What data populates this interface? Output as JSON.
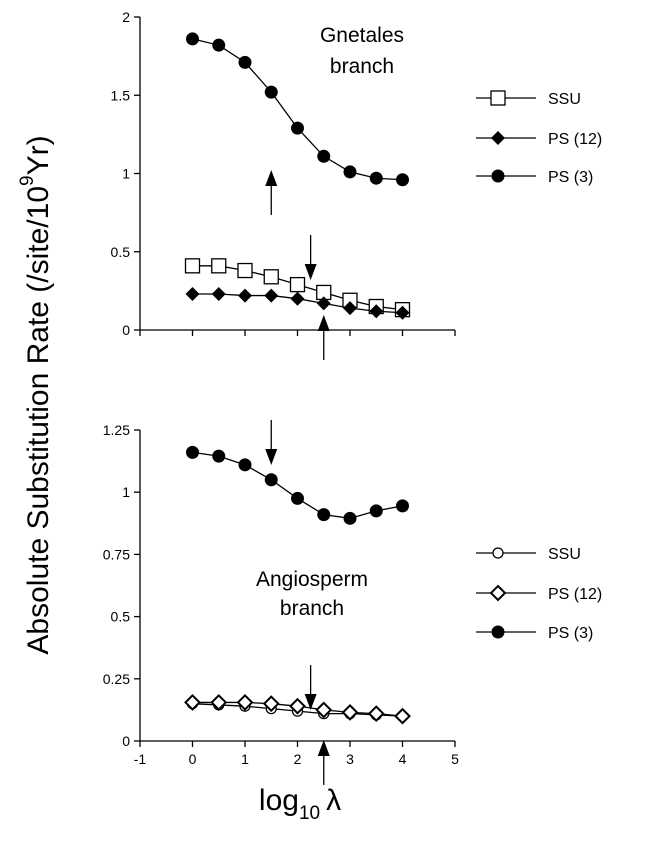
{
  "ylabel": {
    "pre": "Absolute Substitution Rate (/site/10",
    "sup": "9",
    "post": "Yr)"
  },
  "xlabel": {
    "main": "log",
    "sub": "10",
    "symbol": "λ"
  },
  "chart_data": [
    {
      "type": "line",
      "annotation": [
        "Gnetales",
        "branch"
      ],
      "xlim": [
        -1,
        5
      ],
      "ylim": [
        0,
        2
      ],
      "yticks": [
        0,
        0.5,
        1,
        1.5,
        2
      ],
      "ytick_labels": [
        "0",
        "0.5",
        "1",
        "1.5",
        "2"
      ],
      "x": [
        0,
        0.5,
        1,
        1.5,
        2,
        2.5,
        3,
        3.5,
        4
      ],
      "series": [
        {
          "name": "SSU",
          "marker": "open-square",
          "values": [
            0.41,
            0.41,
            0.38,
            0.34,
            0.29,
            0.24,
            0.19,
            0.15,
            0.13
          ]
        },
        {
          "name": "PS (12)",
          "marker": "filled-diamond",
          "values": [
            0.23,
            0.23,
            0.22,
            0.22,
            0.2,
            0.17,
            0.14,
            0.12,
            0.11
          ]
        },
        {
          "name": "PS (3)",
          "marker": "filled-circle",
          "values": [
            1.86,
            1.82,
            1.71,
            1.52,
            1.29,
            1.11,
            1.01,
            0.97,
            0.96
          ]
        }
      ],
      "arrows": [
        {
          "x": 1.5,
          "direction": "up"
        },
        {
          "x": 2.25,
          "direction": "down"
        },
        {
          "x": 2.5,
          "direction": "up"
        }
      ]
    },
    {
      "type": "line",
      "annotation": [
        "Angiosperm",
        "branch"
      ],
      "xlim": [
        -1,
        5
      ],
      "ylim": [
        0,
        1.25
      ],
      "xticks": [
        -1,
        0,
        1,
        2,
        3,
        4,
        5
      ],
      "xtick_labels": [
        "-1",
        "0",
        "1",
        "2",
        "3",
        "4",
        "5"
      ],
      "yticks": [
        0,
        0.25,
        0.5,
        0.75,
        1,
        1.25
      ],
      "ytick_labels": [
        "0",
        "0.25",
        "0.5",
        "0.75",
        "1",
        "1.25"
      ],
      "x": [
        0,
        0.5,
        1,
        1.5,
        2,
        2.5,
        3,
        3.5,
        4
      ],
      "series": [
        {
          "name": "SSU",
          "marker": "open-circle",
          "values": [
            0.15,
            0.145,
            0.14,
            0.13,
            0.12,
            0.11,
            0.11,
            0.105,
            0.1
          ]
        },
        {
          "name": "PS (12)",
          "marker": "open-diamond",
          "values": [
            0.155,
            0.155,
            0.155,
            0.15,
            0.14,
            0.125,
            0.115,
            0.11,
            0.1
          ]
        },
        {
          "name": "PS (3)",
          "marker": "filled-circle",
          "values": [
            1.16,
            1.145,
            1.11,
            1.05,
            0.975,
            0.91,
            0.895,
            0.925,
            0.945
          ]
        }
      ],
      "arrows": [
        {
          "x": 1.5,
          "direction": "down"
        },
        {
          "x": 2.25,
          "direction": "down"
        },
        {
          "x": 2.5,
          "direction": "up"
        }
      ]
    }
  ]
}
